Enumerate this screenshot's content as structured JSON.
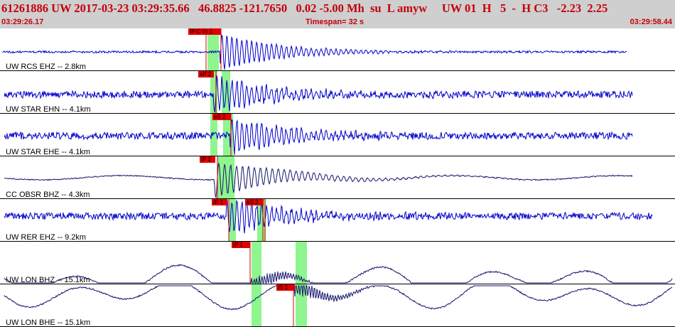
{
  "header": {
    "title": "61261886 UW 2017-03-23 03:29:35.66   46.8825 -121.7650   0.02 -5.00 Mh  su  L amyw     UW 01  H   5  -  H C3   -2.23  2.25",
    "start_time": "03:29:26.17",
    "timespan": "Timespan=  32 s",
    "end_time": "03:29:58.44"
  },
  "colors": {
    "header_bg": "#cfcfcf",
    "header_text": "#c4000c",
    "trace_blue": "#0000cc",
    "trace_navy": "#14146e",
    "pick_red": "#e00000",
    "window_green": "#8ff58f"
  },
  "traces": [
    {
      "label": "UW RCS EHZ -- 2.8km",
      "color": "blue",
      "picks": [
        {
          "text": "IP:C IS 1"
        }
      ]
    },
    {
      "label": "UW STAR EHN -- 4.1km",
      "color": "blue",
      "picks": [
        {
          "text": "eP 2"
        }
      ]
    },
    {
      "label": "UW STAR EHE -- 4.1km",
      "color": "blue",
      "picks": [
        {
          "text": "eS 2"
        }
      ]
    },
    {
      "label": "CC OBSR BHZ -- 4.3km",
      "color": "navy",
      "picks": [
        {
          "text": "IP 1"
        }
      ]
    },
    {
      "label": "UW RER EHZ -- 9.2km",
      "color": "blue",
      "picks": [
        {
          "text": "IP 1"
        },
        {
          "text": "eS 2"
        }
      ]
    },
    {
      "label": "UW LON BHZ -- 15.1km",
      "color": "navy",
      "picks": [
        {
          "text": "IP 1"
        }
      ]
    },
    {
      "label": "UW LON BHE -- 15.1km",
      "color": "navy",
      "picks": [
        {
          "text": "IS 1"
        }
      ]
    }
  ]
}
